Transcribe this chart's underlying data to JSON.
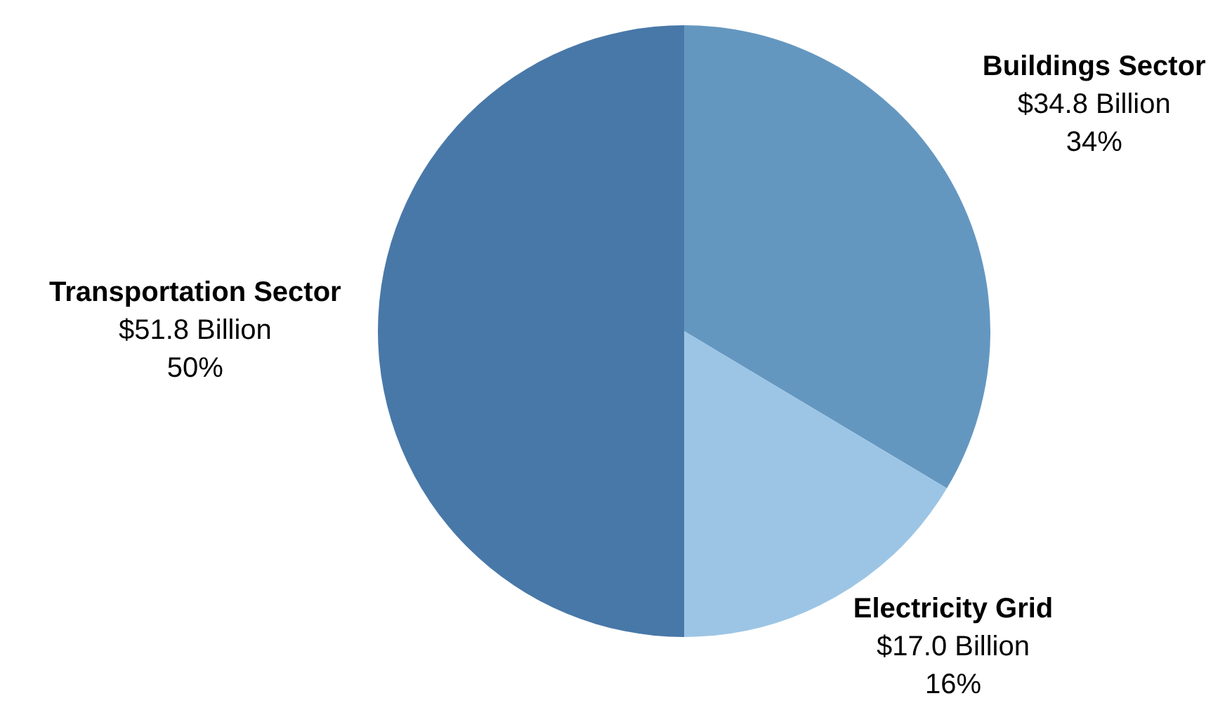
{
  "chart_data": {
    "type": "pie",
    "categories": [
      "Buildings Sector",
      "Electricity Grid",
      "Transportation Sector"
    ],
    "values": [
      34.8,
      17.0,
      51.8
    ],
    "colors": [
      "#6497c0",
      "#9cc5e5",
      "#4878a8"
    ],
    "value_labels": [
      "$34.8 Billion\n34%",
      "$17.0 Billion\n16%",
      "$51.8 Billion\n50%"
    ],
    "legend": false
  }
}
